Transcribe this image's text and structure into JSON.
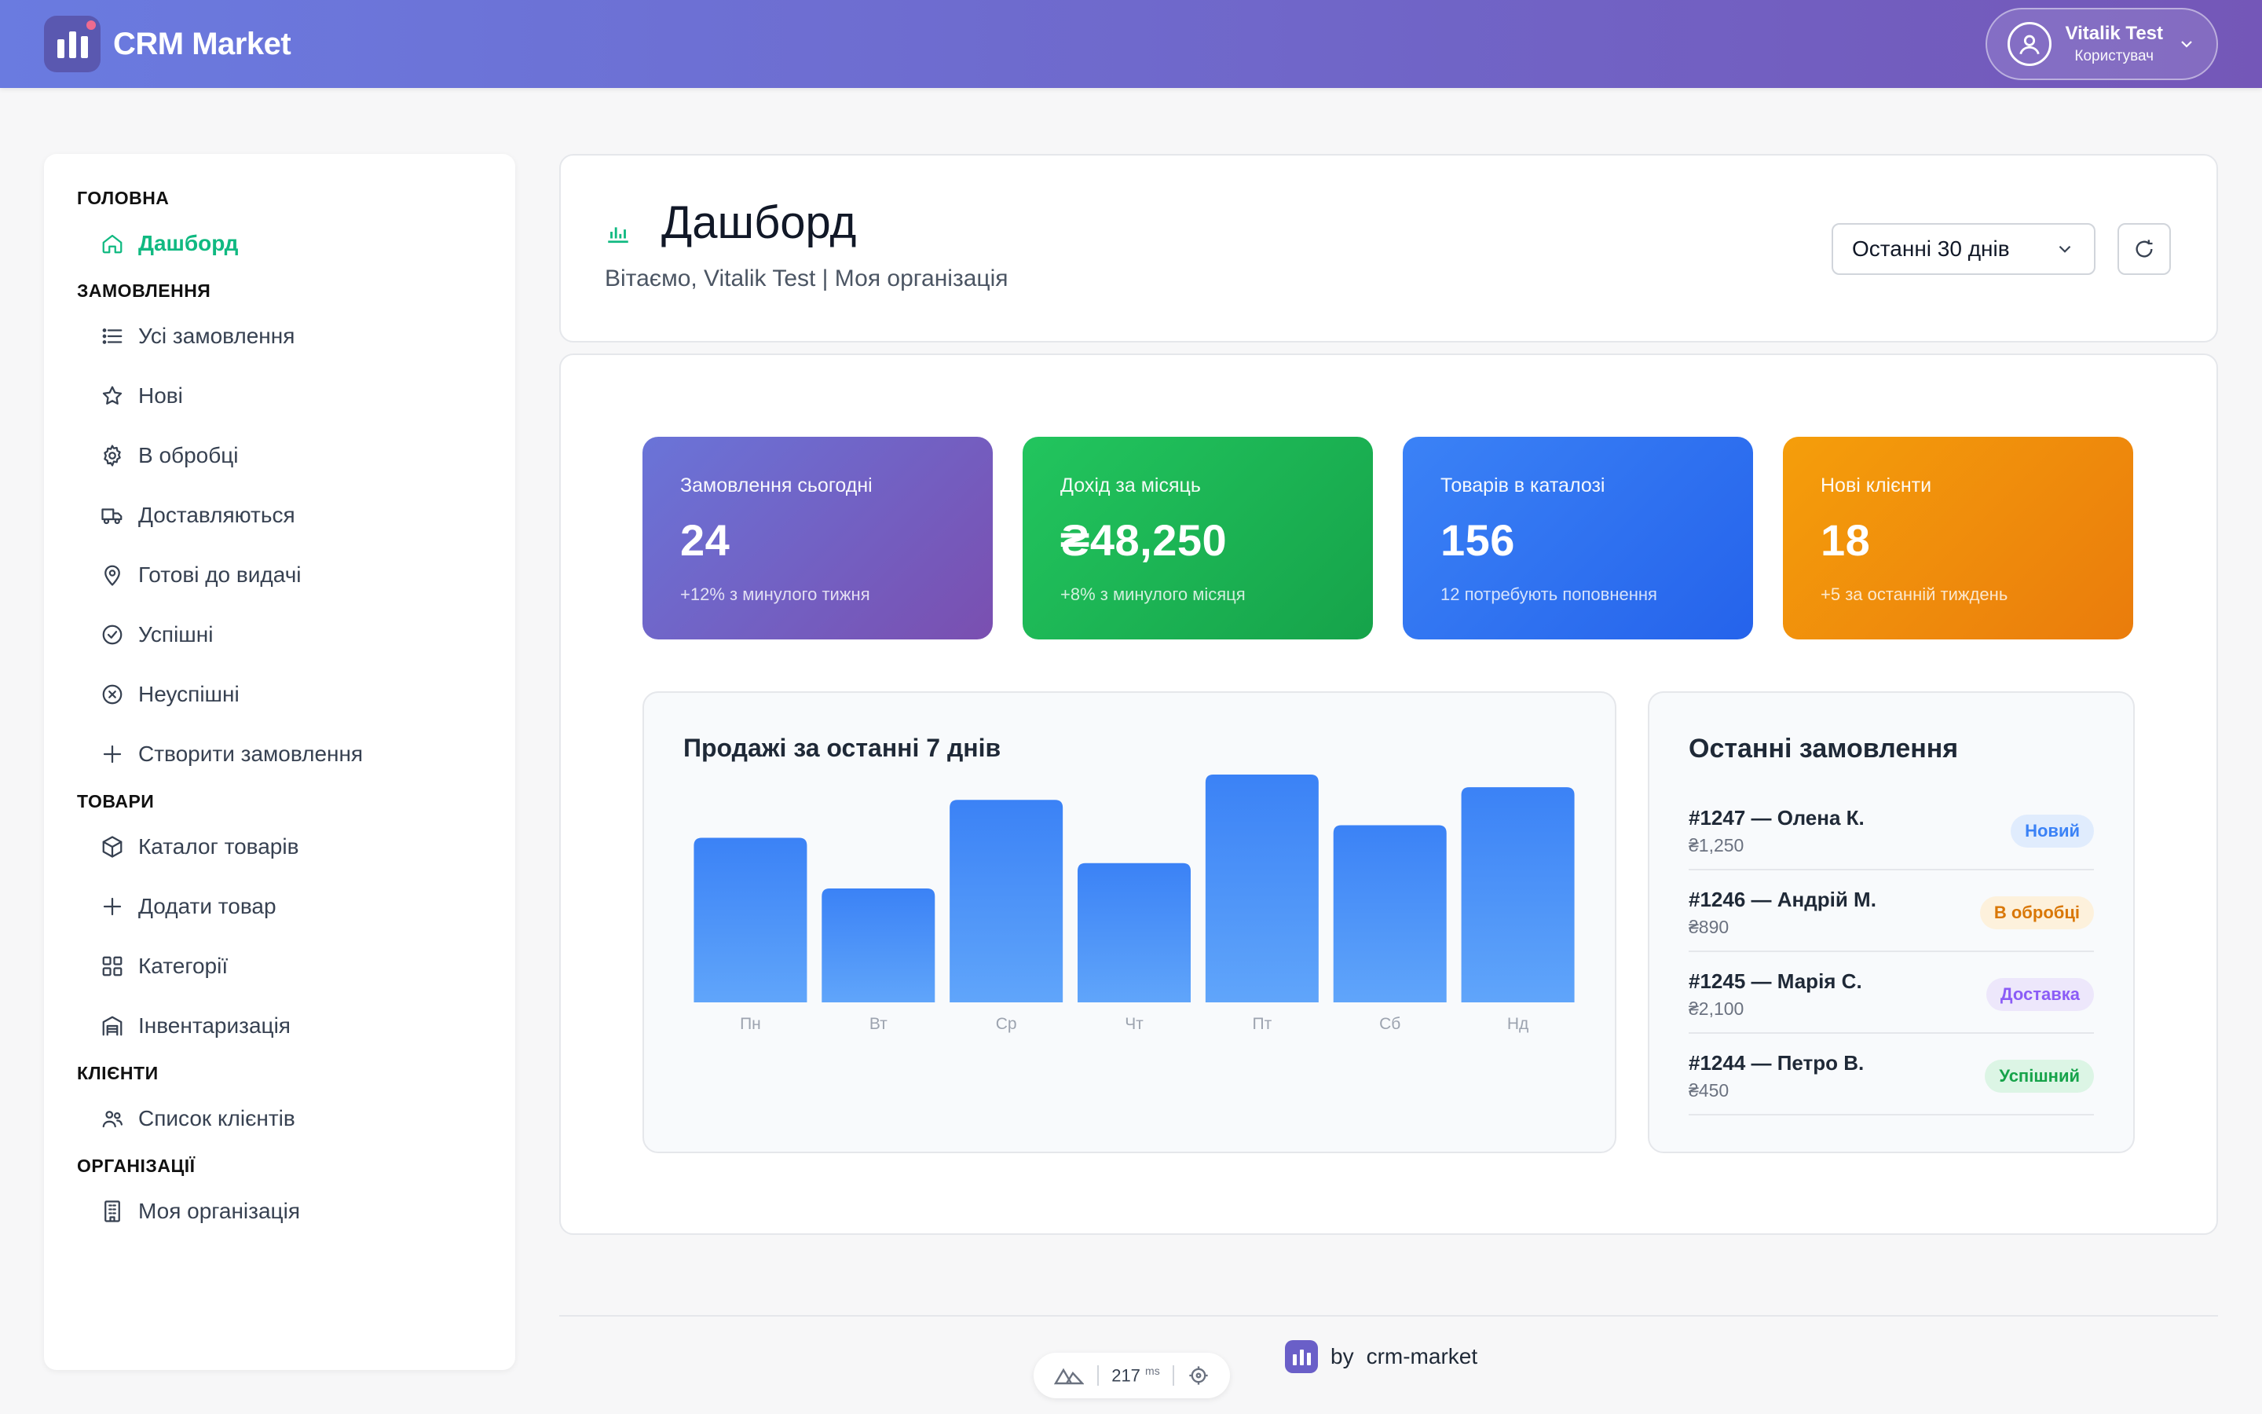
{
  "app": {
    "name": "CRM Market"
  },
  "user": {
    "name": "Vitalik Test",
    "role": "Користувач"
  },
  "sidebar": {
    "sections": [
      {
        "title": "ГОЛОВНА",
        "items": [
          {
            "label": "Дашборд",
            "icon": "home-icon",
            "active": true
          }
        ]
      },
      {
        "title": "ЗАМОВЛЕННЯ",
        "items": [
          {
            "label": "Усі замовлення",
            "icon": "list-icon"
          },
          {
            "label": "Нові",
            "icon": "star-icon"
          },
          {
            "label": "В обробці",
            "icon": "gear-icon"
          },
          {
            "label": "Доставляються",
            "icon": "truck-icon"
          },
          {
            "label": "Готові до видачі",
            "icon": "map-pin-icon"
          },
          {
            "label": "Успішні",
            "icon": "check-circle-icon"
          },
          {
            "label": "Неуспішні",
            "icon": "x-circle-icon"
          },
          {
            "label": "Створити замовлення",
            "icon": "plus-icon"
          }
        ]
      },
      {
        "title": "ТОВАРИ",
        "items": [
          {
            "label": "Каталог товарів",
            "icon": "box-icon"
          },
          {
            "label": "Додати товар",
            "icon": "plus-icon"
          },
          {
            "label": "Категорії",
            "icon": "grid-icon"
          },
          {
            "label": "Інвентаризація",
            "icon": "warehouse-icon"
          }
        ]
      },
      {
        "title": "КЛІЄНТИ",
        "items": [
          {
            "label": "Список клієнтів",
            "icon": "users-icon"
          }
        ]
      },
      {
        "title": "ОРГАНІЗАЦІЇ",
        "items": [
          {
            "label": "Моя організація",
            "icon": "building-icon"
          }
        ]
      }
    ]
  },
  "page": {
    "title": "Дашборд",
    "subtitle": "Вітаємо, Vitalik Test | Моя організація",
    "range": "Останні 30 днів"
  },
  "stats": [
    {
      "label": "Замовлення сьогодні",
      "value": "24",
      "note": "+12% з минулого тижня"
    },
    {
      "label": "Дохід за місяць",
      "value": "₴48,250",
      "note": "+8% з минулого місяця"
    },
    {
      "label": "Товарів в каталозі",
      "value": "156",
      "note": "12 потребують поповнення"
    },
    {
      "label": "Нові клієнти",
      "value": "18",
      "note": "+5 за останній тиждень"
    }
  ],
  "chart_data": {
    "type": "bar",
    "title": "Продажі за останні 7 днів",
    "categories": [
      "Пн",
      "Вт",
      "Ср",
      "Чт",
      "Пт",
      "Сб",
      "Нд"
    ],
    "values": [
      65,
      45,
      80,
      55,
      90,
      70,
      85
    ],
    "ylim": [
      0,
      90
    ],
    "grid": false,
    "colors": {
      "top": "#3b82f6",
      "bottom": "#60a5fa"
    }
  },
  "recent_orders": {
    "title": "Останні замовлення",
    "items": [
      {
        "id": "#1247 — Олена К.",
        "amount": "₴1,250",
        "status": "Новий",
        "color": "#3b82f6",
        "bg": "#e0ecfd"
      },
      {
        "id": "#1246 — Андрій М.",
        "amount": "₴890",
        "status": "В обробці",
        "color": "#d97706",
        "bg": "#fdf1dc"
      },
      {
        "id": "#1245 — Марія С.",
        "amount": "₴2,100",
        "status": "Доставка",
        "color": "#8b5cf6",
        "bg": "#ede7fb"
      },
      {
        "id": "#1244 — Петро В.",
        "amount": "₴450",
        "status": "Успішний",
        "color": "#16a34a",
        "bg": "#dcf5e5"
      }
    ]
  },
  "footer": {
    "perf_ms": "217",
    "perf_unit": "ms",
    "by": "by",
    "brand": "crm-market"
  }
}
